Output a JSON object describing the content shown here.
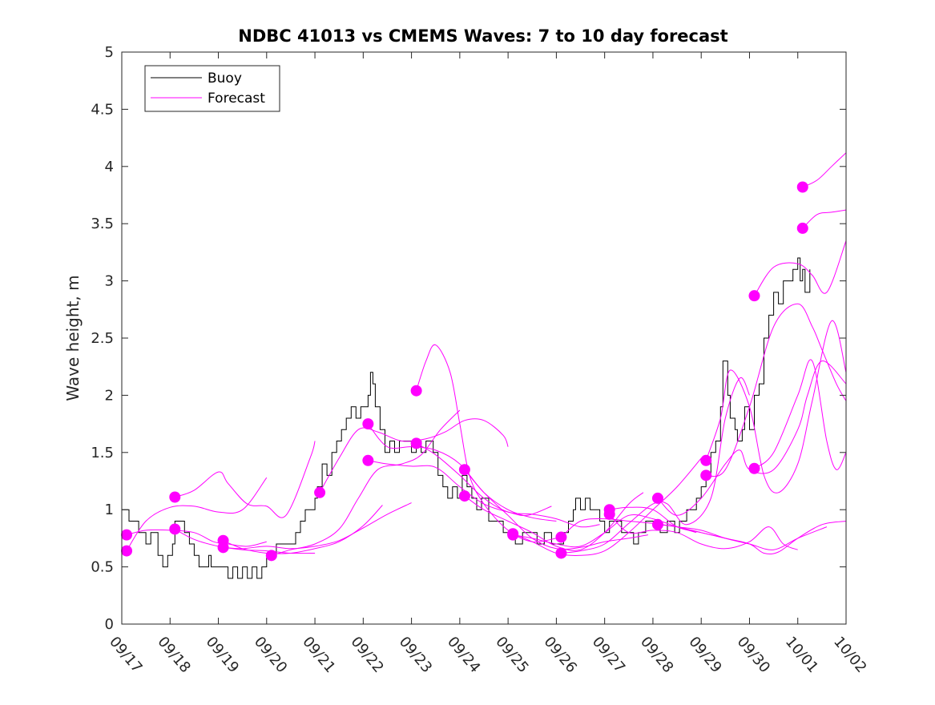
{
  "chart_data": {
    "type": "line",
    "title": "NDBC 41013 vs CMEMS Waves: 7 to 10 day forecast",
    "xlabel": "",
    "ylabel": "Wave height, m",
    "xlim": [
      0,
      15
    ],
    "ylim": [
      0,
      5
    ],
    "x_tick_labels": [
      "09/17",
      "09/18",
      "09/19",
      "09/20",
      "09/21",
      "09/22",
      "09/23",
      "09/24",
      "09/25",
      "09/26",
      "09/27",
      "09/28",
      "09/29",
      "09/30",
      "10/01",
      "10/02"
    ],
    "y_ticks": [
      0,
      0.5,
      1,
      1.5,
      2,
      2.5,
      3,
      3.5,
      4,
      4.5,
      5
    ],
    "x_unit": "days since 09/17 00:00",
    "legend": {
      "location": "top-left",
      "entries": [
        "Buoy",
        "Forecast"
      ]
    },
    "colors": {
      "buoy": "#000000",
      "forecast": "#ff00ff"
    },
    "buoy": {
      "name": "Buoy",
      "points": [
        [
          0,
          1.0
        ],
        [
          0.1,
          1.0
        ],
        [
          0.15,
          0.9
        ],
        [
          0.3,
          0.9
        ],
        [
          0.35,
          0.8
        ],
        [
          0.45,
          0.8
        ],
        [
          0.5,
          0.7
        ],
        [
          0.6,
          0.8
        ],
        [
          0.75,
          0.6
        ],
        [
          0.85,
          0.5
        ],
        [
          0.95,
          0.6
        ],
        [
          1.05,
          0.7
        ],
        [
          1.1,
          0.9
        ],
        [
          1.2,
          0.9
        ],
        [
          1.3,
          0.8
        ],
        [
          1.4,
          0.7
        ],
        [
          1.5,
          0.6
        ],
        [
          1.6,
          0.5
        ],
        [
          1.7,
          0.5
        ],
        [
          1.8,
          0.6
        ],
        [
          1.85,
          0.5
        ],
        [
          1.95,
          0.5
        ],
        [
          2.05,
          0.5
        ],
        [
          2.15,
          0.5
        ],
        [
          2.2,
          0.4
        ],
        [
          2.3,
          0.5
        ],
        [
          2.4,
          0.4
        ],
        [
          2.5,
          0.5
        ],
        [
          2.6,
          0.4
        ],
        [
          2.7,
          0.5
        ],
        [
          2.8,
          0.4
        ],
        [
          2.9,
          0.5
        ],
        [
          3.0,
          0.6
        ],
        [
          3.1,
          0.6
        ],
        [
          3.2,
          0.7
        ],
        [
          3.5,
          0.7
        ],
        [
          3.6,
          0.8
        ],
        [
          3.7,
          0.9
        ],
        [
          3.8,
          1.0
        ],
        [
          3.9,
          1.0
        ],
        [
          4.0,
          1.1
        ],
        [
          4.05,
          1.2
        ],
        [
          4.15,
          1.4
        ],
        [
          4.25,
          1.3
        ],
        [
          4.35,
          1.5
        ],
        [
          4.45,
          1.6
        ],
        [
          4.55,
          1.7
        ],
        [
          4.65,
          1.8
        ],
        [
          4.75,
          1.9
        ],
        [
          4.85,
          1.8
        ],
        [
          4.95,
          1.9
        ],
        [
          5.0,
          1.9
        ],
        [
          5.1,
          2.0
        ],
        [
          5.15,
          2.2
        ],
        [
          5.2,
          2.1
        ],
        [
          5.25,
          1.9
        ],
        [
          5.35,
          1.7
        ],
        [
          5.45,
          1.5
        ],
        [
          5.55,
          1.6
        ],
        [
          5.65,
          1.5
        ],
        [
          5.75,
          1.6
        ],
        [
          5.9,
          1.6
        ],
        [
          6.0,
          1.5
        ],
        [
          6.1,
          1.6
        ],
        [
          6.2,
          1.5
        ],
        [
          6.3,
          1.6
        ],
        [
          6.45,
          1.5
        ],
        [
          6.55,
          1.3
        ],
        [
          6.65,
          1.2
        ],
        [
          6.75,
          1.1
        ],
        [
          6.85,
          1.2
        ],
        [
          6.95,
          1.1
        ],
        [
          7.05,
          1.3
        ],
        [
          7.15,
          1.2
        ],
        [
          7.25,
          1.1
        ],
        [
          7.35,
          1.0
        ],
        [
          7.45,
          1.1
        ],
        [
          7.6,
          0.9
        ],
        [
          7.75,
          0.9
        ],
        [
          7.9,
          0.8
        ],
        [
          8.05,
          0.8
        ],
        [
          8.15,
          0.7
        ],
        [
          8.3,
          0.8
        ],
        [
          8.45,
          0.8
        ],
        [
          8.6,
          0.7
        ],
        [
          8.75,
          0.8
        ],
        [
          8.9,
          0.7
        ],
        [
          9.05,
          0.7
        ],
        [
          9.15,
          0.8
        ],
        [
          9.25,
          0.9
        ],
        [
          9.35,
          1.0
        ],
        [
          9.4,
          1.1
        ],
        [
          9.5,
          1.0
        ],
        [
          9.6,
          1.1
        ],
        [
          9.7,
          1.0
        ],
        [
          9.8,
          1.0
        ],
        [
          9.9,
          0.9
        ],
        [
          10.0,
          0.8
        ],
        [
          10.1,
          0.9
        ],
        [
          10.2,
          0.9
        ],
        [
          10.35,
          0.8
        ],
        [
          10.5,
          0.8
        ],
        [
          10.6,
          0.7
        ],
        [
          10.7,
          0.8
        ],
        [
          10.85,
          0.9
        ],
        [
          11.0,
          0.9
        ],
        [
          11.15,
          0.8
        ],
        [
          11.3,
          0.9
        ],
        [
          11.45,
          0.8
        ],
        [
          11.55,
          0.9
        ],
        [
          11.7,
          1.0
        ],
        [
          11.8,
          1.0
        ],
        [
          11.9,
          1.1
        ],
        [
          12.0,
          1.2
        ],
        [
          12.1,
          1.3
        ],
        [
          12.2,
          1.5
        ],
        [
          12.3,
          1.6
        ],
        [
          12.4,
          1.9
        ],
        [
          12.45,
          2.3
        ],
        [
          12.55,
          2.0
        ],
        [
          12.6,
          1.8
        ],
        [
          12.7,
          1.7
        ],
        [
          12.75,
          1.6
        ],
        [
          12.85,
          1.7
        ],
        [
          12.9,
          1.9
        ],
        [
          13.0,
          1.7
        ],
        [
          13.1,
          2.0
        ],
        [
          13.2,
          2.1
        ],
        [
          13.3,
          2.5
        ],
        [
          13.4,
          2.7
        ],
        [
          13.5,
          2.9
        ],
        [
          13.6,
          2.8
        ],
        [
          13.7,
          3.0
        ],
        [
          13.8,
          3.0
        ],
        [
          13.9,
          3.1
        ],
        [
          14.0,
          3.2
        ],
        [
          14.05,
          3.0
        ],
        [
          14.1,
          3.1
        ],
        [
          14.15,
          2.9
        ],
        [
          14.25,
          3.1
        ]
      ]
    },
    "forecast_series": [
      {
        "name": "Forecast",
        "start": [
          0.1,
          0.78
        ],
        "x": [
          0.1,
          0.5,
          1.0,
          1.5,
          1.9,
          2.2,
          2.6,
          3.0
        ],
        "y": [
          0.78,
          0.82,
          0.82,
          0.8,
          0.72,
          0.7,
          0.68,
          0.72
        ]
      },
      {
        "name": "Forecast",
        "start": [
          0.1,
          0.64
        ],
        "x": [
          0.1,
          0.5,
          1.0,
          1.5,
          2.0,
          2.5,
          3.0
        ],
        "y": [
          0.64,
          0.9,
          1.02,
          1.03,
          0.98,
          1.0,
          1.28
        ]
      },
      {
        "name": "Forecast",
        "start": [
          1.1,
          1.11
        ],
        "x": [
          1.1,
          1.5,
          2.0,
          2.2,
          2.6,
          3.0,
          3.4,
          3.9,
          4.0
        ],
        "y": [
          1.11,
          1.17,
          1.33,
          1.23,
          1.05,
          1.03,
          0.95,
          1.45,
          1.6
        ]
      },
      {
        "name": "Forecast",
        "start": [
          1.1,
          0.83
        ],
        "x": [
          1.1,
          1.5,
          2.0,
          2.5,
          3.0,
          3.5,
          4.0
        ],
        "y": [
          0.83,
          0.74,
          0.68,
          0.65,
          0.64,
          0.62,
          0.62
        ]
      },
      {
        "name": "Forecast",
        "start": [
          2.1,
          0.73
        ],
        "x": [
          2.1,
          2.5,
          3.0,
          3.5,
          4.0,
          4.5,
          5.0,
          5.4
        ],
        "y": [
          0.73,
          0.66,
          0.62,
          0.62,
          0.66,
          0.72,
          0.86,
          1.04
        ]
      },
      {
        "name": "Forecast",
        "start": [
          2.1,
          0.67
        ],
        "x": [
          2.1,
          2.5,
          3.0,
          3.5,
          4.0,
          4.5,
          5.0,
          5.5,
          6.0
        ],
        "y": [
          0.67,
          0.66,
          0.68,
          0.66,
          0.68,
          0.73,
          0.84,
          0.96,
          1.06
        ]
      },
      {
        "name": "Forecast",
        "start": [
          3.1,
          0.6
        ],
        "x": [
          3.1,
          3.5,
          4.0,
          4.5,
          4.9,
          5.3,
          5.8,
          6.2,
          6.6,
          7.0
        ],
        "y": [
          0.6,
          0.65,
          0.7,
          0.83,
          1.1,
          1.35,
          1.4,
          1.48,
          1.7,
          1.87
        ]
      },
      {
        "name": "Forecast",
        "start": [
          4.1,
          1.15
        ],
        "x": [
          4.1,
          4.5,
          4.9,
          5.3,
          5.8,
          6.3,
          6.7,
          7.1,
          7.5,
          7.9,
          8.0
        ],
        "y": [
          1.15,
          1.45,
          1.7,
          1.68,
          1.6,
          1.62,
          1.68,
          1.78,
          1.78,
          1.65,
          1.55
        ]
      },
      {
        "name": "Forecast",
        "start": [
          5.1,
          1.43
        ],
        "x": [
          5.1,
          5.5,
          6.0,
          6.5,
          7.0,
          7.5,
          8.0,
          8.4,
          8.9
        ],
        "y": [
          1.43,
          1.4,
          1.38,
          1.37,
          1.2,
          1.05,
          0.98,
          0.95,
          1.03
        ]
      },
      {
        "name": "Forecast",
        "start": [
          5.1,
          1.75
        ],
        "x": [
          5.1,
          5.5,
          6.0,
          6.5,
          7.0,
          7.5,
          8.0,
          8.5,
          9.0
        ],
        "y": [
          1.75,
          1.55,
          1.55,
          1.52,
          1.4,
          1.15,
          1.0,
          0.93,
          0.9
        ]
      },
      {
        "name": "Forecast",
        "start": [
          6.1,
          2.04
        ],
        "x": [
          6.1,
          6.3,
          6.5,
          6.8,
          7.0,
          7.2,
          7.5,
          8.0,
          8.5,
          9.0
        ],
        "y": [
          2.04,
          2.3,
          2.44,
          2.2,
          1.75,
          1.3,
          1.05,
          0.82,
          0.72,
          0.75
        ]
      },
      {
        "name": "Forecast",
        "start": [
          6.1,
          1.58
        ],
        "x": [
          6.1,
          6.5,
          7.0,
          7.5,
          8.0,
          8.5,
          9.0,
          9.5,
          9.9
        ],
        "y": [
          1.58,
          1.48,
          1.3,
          1.1,
          0.98,
          0.96,
          0.92,
          0.85,
          0.87
        ]
      },
      {
        "name": "Forecast",
        "start": [
          7.1,
          1.35
        ],
        "x": [
          7.1,
          7.5,
          8.0,
          8.5,
          9.0,
          9.5,
          10.0,
          10.5,
          10.9
        ],
        "y": [
          1.35,
          1.15,
          0.95,
          0.75,
          0.66,
          0.67,
          0.72,
          0.75,
          0.78
        ]
      },
      {
        "name": "Forecast",
        "start": [
          7.1,
          1.12
        ],
        "x": [
          7.1,
          7.5,
          8.0,
          8.5,
          9.0,
          9.5,
          10.0,
          10.5,
          10.8
        ],
        "y": [
          1.12,
          1.0,
          0.9,
          0.8,
          0.68,
          0.65,
          0.8,
          1.05,
          1.15
        ]
      },
      {
        "name": "Forecast",
        "start": [
          8.1,
          0.79
        ],
        "x": [
          8.1,
          8.5,
          9.0,
          9.5,
          10.0,
          10.5,
          11.0,
          11.5,
          12.0
        ],
        "y": [
          0.79,
          0.72,
          0.62,
          0.6,
          0.64,
          0.8,
          1.0,
          1.2,
          1.45
        ]
      },
      {
        "name": "Forecast",
        "start": [
          8.1,
          0.78
        ],
        "x": [
          8.1,
          8.5,
          9.0,
          9.5,
          10.0,
          10.5,
          11.0,
          11.5,
          11.9
        ],
        "y": [
          0.78,
          0.75,
          0.7,
          0.68,
          0.8,
          0.95,
          0.92,
          0.85,
          0.8
        ]
      },
      {
        "name": "Forecast",
        "start": [
          9.1,
          0.76
        ],
        "x": [
          9.1,
          9.5,
          10.0,
          10.5,
          11.0,
          11.5,
          12.0,
          12.5,
          13.0
        ],
        "y": [
          0.76,
          0.9,
          0.92,
          0.9,
          0.88,
          0.85,
          0.82,
          0.75,
          0.7
        ]
      },
      {
        "name": "Forecast",
        "start": [
          9.1,
          0.62
        ],
        "x": [
          9.1,
          9.5,
          10.0,
          10.5,
          11.0,
          11.3,
          11.7,
          12.2,
          12.5,
          12.8,
          13.0
        ],
        "y": [
          0.62,
          0.64,
          0.7,
          0.88,
          1.05,
          1.05,
          0.87,
          1.1,
          1.8,
          2.15,
          2.0
        ]
      },
      {
        "name": "Forecast",
        "start": [
          10.1,
          1.0
        ],
        "x": [
          10.1,
          10.5,
          11.0,
          11.5,
          12.0,
          12.5,
          13.0,
          13.5,
          14.0,
          14.6
        ],
        "y": [
          1.0,
          1.02,
          1.0,
          0.85,
          0.8,
          0.75,
          0.7,
          0.65,
          0.75,
          0.85
        ]
      },
      {
        "name": "Forecast",
        "start": [
          10.1,
          0.96
        ],
        "x": [
          10.1,
          10.5,
          11.0,
          11.5,
          12.0,
          12.5,
          13.0,
          13.4,
          13.7,
          14.0
        ],
        "y": [
          0.96,
          0.8,
          0.82,
          0.8,
          0.7,
          0.66,
          0.72,
          0.85,
          0.7,
          0.65
        ]
      },
      {
        "name": "Forecast",
        "start": [
          11.1,
          1.1
        ],
        "x": [
          11.1,
          11.5,
          12.0,
          12.5,
          12.8,
          13.0,
          13.5,
          14.0,
          14.2,
          14.5,
          15.0
        ],
        "y": [
          1.1,
          0.95,
          1.1,
          1.4,
          1.52,
          1.35,
          1.35,
          1.7,
          2.0,
          2.3,
          2.1
        ]
      },
      {
        "name": "Forecast",
        "start": [
          11.1,
          0.87
        ],
        "x": [
          11.1,
          11.5,
          12.0,
          12.5,
          13.0,
          13.3,
          13.6,
          14.0,
          14.5,
          15.0
        ],
        "y": [
          0.87,
          0.85,
          0.8,
          0.75,
          0.7,
          0.62,
          0.63,
          0.75,
          0.87,
          0.9
        ]
      },
      {
        "name": "Forecast",
        "start": [
          12.1,
          1.43
        ],
        "x": [
          12.1,
          12.4,
          12.6,
          13.0,
          13.3,
          13.6,
          14.0,
          14.3,
          14.7,
          15.0
        ],
        "y": [
          1.43,
          1.8,
          2.22,
          1.9,
          1.3,
          1.15,
          1.4,
          1.95,
          2.65,
          2.2
        ]
      },
      {
        "name": "Forecast",
        "start": [
          12.1,
          1.3
        ],
        "x": [
          12.1,
          12.5,
          13.0,
          13.5,
          14.0,
          14.3,
          14.5,
          14.8,
          15.0
        ],
        "y": [
          1.3,
          1.35,
          1.9,
          2.6,
          2.8,
          2.6,
          2.4,
          2.1,
          1.95
        ]
      },
      {
        "name": "Forecast",
        "start": [
          13.1,
          1.36
        ],
        "x": [
          13.1,
          13.5,
          14.0,
          14.3,
          14.6,
          14.8,
          15.0
        ],
        "y": [
          1.36,
          1.5,
          2.0,
          2.3,
          1.6,
          1.35,
          1.5
        ]
      },
      {
        "name": "Forecast",
        "start": [
          13.1,
          2.87
        ],
        "x": [
          13.1,
          13.5,
          14.0,
          14.3,
          14.6,
          15.0
        ],
        "y": [
          2.87,
          3.12,
          3.15,
          3.05,
          2.9,
          3.35
        ]
      },
      {
        "name": "Forecast",
        "start": [
          14.1,
          3.82
        ],
        "x": [
          14.1,
          14.4,
          14.7,
          15.0
        ],
        "y": [
          3.82,
          3.88,
          4.0,
          4.12
        ]
      },
      {
        "name": "Forecast",
        "start": [
          14.1,
          3.46
        ],
        "x": [
          14.1,
          14.4,
          14.7,
          15.0
        ],
        "y": [
          3.46,
          3.58,
          3.6,
          3.62
        ]
      }
    ]
  }
}
